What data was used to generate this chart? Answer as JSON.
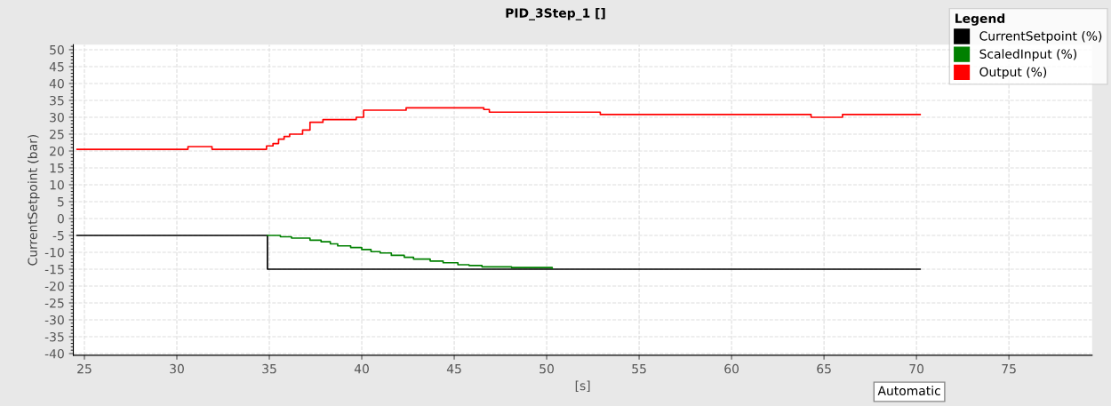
{
  "chart_data": {
    "type": "step",
    "title": "PID_3Step_1 []",
    "xlabel": "[s]",
    "ylabel": "CurrentSetpoint (bar)",
    "legend_title": "Legend",
    "xlim": [
      24.4,
      79.5
    ],
    "xticks": [
      25,
      30,
      35,
      40,
      45,
      50,
      55,
      60,
      65,
      70,
      75
    ],
    "ylim": [
      -40.5,
      51.5
    ],
    "yticks": [
      -40,
      -35,
      -30,
      -25,
      -20,
      -15,
      -10,
      -5,
      0,
      5,
      10,
      15,
      20,
      25,
      30,
      35,
      40,
      45,
      50
    ],
    "grid": true,
    "legend": "top right",
    "annotations": [
      "Automatic"
    ],
    "series": [
      {
        "name": "CurrentSetpoint (%)",
        "color": "#000000",
        "x": [
          24.6,
          34.9,
          70.2
        ],
        "values": [
          -5,
          -15,
          -15
        ]
      },
      {
        "name": "ScaledInput (%)",
        "color": "#008000",
        "x": [
          34.9,
          35.6,
          36.2,
          37.2,
          37.8,
          38.3,
          38.7,
          39.4,
          40.0,
          40.5,
          41.0,
          41.6,
          42.3,
          42.8,
          43.7,
          44.4,
          45.2,
          45.8,
          46.5,
          48.1,
          50.3
        ],
        "values": [
          -5.0,
          -5.4,
          -5.8,
          -6.4,
          -6.9,
          -7.5,
          -8.1,
          -8.6,
          -9.2,
          -9.8,
          -10.2,
          -10.9,
          -11.5,
          -12.0,
          -12.6,
          -13.1,
          -13.7,
          -13.9,
          -14.3,
          -14.5,
          -14.8
        ]
      },
      {
        "name": "Output (%)",
        "color": "#ff0000",
        "x": [
          24.6,
          30.6,
          31.9,
          34.85,
          35.2,
          35.5,
          35.8,
          36.1,
          36.8,
          37.2,
          37.9,
          39.7,
          40.1,
          42.4,
          46.6,
          46.9,
          52.9,
          64.3,
          66.0,
          70.2
        ],
        "values": [
          20.5,
          21.3,
          20.5,
          21.5,
          22.2,
          23.5,
          24.3,
          25,
          26.2,
          28.5,
          29.3,
          30,
          32.1,
          32.8,
          32.3,
          31.5,
          30.8,
          30,
          30.8,
          30.8
        ]
      }
    ]
  }
}
